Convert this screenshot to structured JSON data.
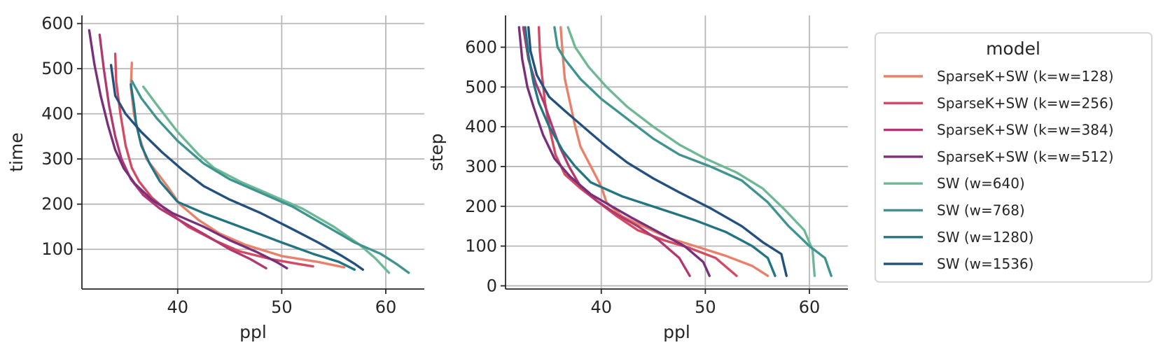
{
  "chart_data": [
    {
      "type": "line",
      "xlabel": "ppl",
      "ylabel": "time",
      "xlim": [
        30.8,
        63.7
      ],
      "ylim": [
        12,
        618
      ],
      "xticks": [
        40,
        50,
        60
      ],
      "yticks": [
        100,
        200,
        300,
        400,
        500,
        600
      ],
      "grid": true,
      "series": [
        {
          "name": "SparseK+SW (k=w=128)",
          "points": [
            [
              35.6,
              513
            ],
            [
              35.5,
              460
            ],
            [
              35.8,
              400
            ],
            [
              36.3,
              350
            ],
            [
              37.0,
              300
            ],
            [
              38.0,
              270
            ],
            [
              39.0,
              240
            ],
            [
              40.2,
              200
            ],
            [
              42.0,
              165
            ],
            [
              44.0,
              135
            ],
            [
              46.5,
              110
            ],
            [
              50.0,
              85
            ],
            [
              53.5,
              72
            ],
            [
              56.0,
              60
            ]
          ]
        },
        {
          "name": "SparseK+SW (k=w=256)",
          "points": [
            [
              34.0,
              533
            ],
            [
              34.1,
              470
            ],
            [
              34.5,
              400
            ],
            [
              35.0,
              330
            ],
            [
              35.6,
              280
            ],
            [
              36.3,
              250
            ],
            [
              37.5,
              215
            ],
            [
              39.0,
              185
            ],
            [
              41.0,
              150
            ],
            [
              43.5,
              120
            ],
            [
              46.0,
              95
            ],
            [
              49.0,
              78
            ],
            [
              51.5,
              68
            ],
            [
              53.0,
              62
            ]
          ]
        },
        {
          "name": "SparseK+SW (k=w=384)",
          "points": [
            [
              32.5,
              575
            ],
            [
              32.9,
              500
            ],
            [
              33.4,
              420
            ],
            [
              34.0,
              350
            ],
            [
              34.6,
              300
            ],
            [
              35.5,
              255
            ],
            [
              36.7,
              220
            ],
            [
              38.3,
              190
            ],
            [
              40.5,
              160
            ],
            [
              42.8,
              130
            ],
            [
              45.0,
              100
            ],
            [
              47.0,
              78
            ],
            [
              48.5,
              58
            ]
          ]
        },
        {
          "name": "SparseK+SW (k=w=512)",
          "points": [
            [
              31.5,
              585
            ],
            [
              32.0,
              510
            ],
            [
              32.6,
              440
            ],
            [
              33.3,
              375
            ],
            [
              34.0,
              320
            ],
            [
              34.8,
              280
            ],
            [
              35.9,
              245
            ],
            [
              37.5,
              210
            ],
            [
              39.5,
              180
            ],
            [
              42.5,
              150
            ],
            [
              45.0,
              120
            ],
            [
              47.5,
              95
            ],
            [
              49.5,
              72
            ],
            [
              50.5,
              58
            ]
          ]
        },
        {
          "name": "SW (w=640)",
          "points": [
            [
              36.7,
              460
            ],
            [
              38.0,
              420
            ],
            [
              40.0,
              360
            ],
            [
              42.0,
              310
            ],
            [
              43.5,
              280
            ],
            [
              46.0,
              250
            ],
            [
              49.0,
              220
            ],
            [
              52.0,
              190
            ],
            [
              55.0,
              150
            ],
            [
              57.5,
              110
            ],
            [
              59.0,
              80
            ],
            [
              60.3,
              48
            ]
          ]
        },
        {
          "name": "SW (w=768)",
          "points": [
            [
              35.6,
              473
            ],
            [
              36.5,
              435
            ],
            [
              38.0,
              390
            ],
            [
              40.0,
              340
            ],
            [
              42.5,
              290
            ],
            [
              45.0,
              255
            ],
            [
              48.0,
              225
            ],
            [
              51.0,
              195
            ],
            [
              54.0,
              155
            ],
            [
              57.0,
              115
            ],
            [
              59.5,
              90
            ],
            [
              61.0,
              68
            ],
            [
              62.2,
              48
            ]
          ]
        },
        {
          "name": "SW (w=1280)",
          "points": [
            [
              35.5,
              465
            ],
            [
              35.8,
              420
            ],
            [
              36.0,
              380
            ],
            [
              36.5,
              330
            ],
            [
              37.3,
              290
            ],
            [
              38.3,
              250
            ],
            [
              40.0,
              205
            ],
            [
              42.5,
              180
            ],
            [
              46.0,
              150
            ],
            [
              50.0,
              115
            ],
            [
              53.0,
              90
            ],
            [
              55.5,
              72
            ],
            [
              57.0,
              55
            ]
          ]
        },
        {
          "name": "SW (w=1536)",
          "points": [
            [
              33.6,
              508
            ],
            [
              34.0,
              440
            ],
            [
              35.0,
              400
            ],
            [
              36.5,
              360
            ],
            [
              38.5,
              315
            ],
            [
              40.5,
              275
            ],
            [
              42.5,
              240
            ],
            [
              45.0,
              210
            ],
            [
              48.0,
              180
            ],
            [
              51.0,
              145
            ],
            [
              53.5,
              115
            ],
            [
              55.8,
              85
            ],
            [
              57.0,
              68
            ],
            [
              57.8,
              55
            ]
          ]
        }
      ]
    },
    {
      "type": "line",
      "xlabel": "ppl",
      "ylabel": "step",
      "xlim": [
        30.8,
        63.7
      ],
      "ylim": [
        -8,
        680
      ],
      "xticks": [
        40,
        50,
        60
      ],
      "yticks": [
        0,
        100,
        200,
        300,
        400,
        500,
        600
      ],
      "grid": true,
      "series": [
        {
          "name": "SparseK+SW (k=w=128)",
          "points": [
            [
              36.1,
              650
            ],
            [
              36.3,
              580
            ],
            [
              36.5,
              520
            ],
            [
              37.0,
              460
            ],
            [
              37.5,
              400
            ],
            [
              38.0,
              350
            ],
            [
              39.0,
              300
            ],
            [
              40.0,
              250
            ],
            [
              40.5,
              210
            ],
            [
              42.0,
              175
            ],
            [
              44.0,
              150
            ],
            [
              46.5,
              120
            ],
            [
              49.0,
              100
            ],
            [
              52.0,
              75
            ],
            [
              54.5,
              50
            ],
            [
              56.0,
              25
            ]
          ]
        },
        {
          "name": "SparseK+SW (k=w=256)",
          "points": [
            [
              34.0,
              650
            ],
            [
              34.1,
              590
            ],
            [
              34.3,
              530
            ],
            [
              34.6,
              460
            ],
            [
              35.0,
              400
            ],
            [
              35.6,
              330
            ],
            [
              36.5,
              280
            ],
            [
              38.0,
              245
            ],
            [
              39.5,
              215
            ],
            [
              41.5,
              175
            ],
            [
              43.5,
              140
            ],
            [
              46.0,
              115
            ],
            [
              48.5,
              95
            ],
            [
              51.0,
              70
            ],
            [
              53.0,
              25
            ]
          ]
        },
        {
          "name": "SparseK+SW (k=w=384)",
          "points": [
            [
              32.5,
              650
            ],
            [
              33.0,
              570
            ],
            [
              33.7,
              510
            ],
            [
              34.5,
              460
            ],
            [
              35.3,
              400
            ],
            [
              36.0,
              350
            ],
            [
              36.9,
              300
            ],
            [
              38.0,
              250
            ],
            [
              39.5,
              215
            ],
            [
              41.5,
              180
            ],
            [
              43.5,
              150
            ],
            [
              45.5,
              115
            ],
            [
              47.5,
              70
            ],
            [
              48.5,
              25
            ]
          ]
        },
        {
          "name": "SparseK+SW (k=w=512)",
          "points": [
            [
              32.1,
              650
            ],
            [
              32.4,
              570
            ],
            [
              32.9,
              500
            ],
            [
              33.5,
              450
            ],
            [
              34.4,
              380
            ],
            [
              35.5,
              320
            ],
            [
              37.0,
              275
            ],
            [
              39.0,
              230
            ],
            [
              41.0,
              200
            ],
            [
              43.0,
              170
            ],
            [
              45.5,
              135
            ],
            [
              48.0,
              100
            ],
            [
              49.8,
              60
            ],
            [
              50.4,
              25
            ]
          ]
        },
        {
          "name": "SW (w=640)",
          "points": [
            [
              36.8,
              650
            ],
            [
              37.5,
              600
            ],
            [
              38.8,
              550
            ],
            [
              40.5,
              500
            ],
            [
              42.5,
              450
            ],
            [
              45.0,
              400
            ],
            [
              47.5,
              355
            ],
            [
              50.0,
              320
            ],
            [
              53.0,
              285
            ],
            [
              55.5,
              245
            ],
            [
              57.5,
              195
            ],
            [
              59.5,
              140
            ],
            [
              60.3,
              90
            ],
            [
              60.5,
              25
            ]
          ]
        },
        {
          "name": "SW (w=768)",
          "points": [
            [
              35.5,
              650
            ],
            [
              35.8,
              600
            ],
            [
              36.5,
              570
            ],
            [
              38.0,
              520
            ],
            [
              40.0,
              470
            ],
            [
              42.5,
              420
            ],
            [
              45.0,
              370
            ],
            [
              47.5,
              330
            ],
            [
              50.5,
              300
            ],
            [
              53.5,
              265
            ],
            [
              56.0,
              210
            ],
            [
              58.0,
              150
            ],
            [
              60.0,
              100
            ],
            [
              61.5,
              70
            ],
            [
              62.1,
              25
            ]
          ]
        },
        {
          "name": "SW (w=1280)",
          "points": [
            [
              32.7,
              650
            ],
            [
              33.0,
              580
            ],
            [
              33.5,
              510
            ],
            [
              34.0,
              460
            ],
            [
              35.0,
              400
            ],
            [
              36.3,
              340
            ],
            [
              37.5,
              300
            ],
            [
              39.0,
              260
            ],
            [
              42.0,
              225
            ],
            [
              45.5,
              195
            ],
            [
              49.0,
              165
            ],
            [
              52.0,
              135
            ],
            [
              54.5,
              100
            ],
            [
              56.0,
              70
            ],
            [
              56.7,
              25
            ]
          ]
        },
        {
          "name": "SW (w=1536)",
          "points": [
            [
              33.0,
              650
            ],
            [
              33.2,
              590
            ],
            [
              33.8,
              530
            ],
            [
              35.0,
              475
            ],
            [
              36.5,
              440
            ],
            [
              38.5,
              395
            ],
            [
              40.5,
              350
            ],
            [
              42.5,
              310
            ],
            [
              45.0,
              270
            ],
            [
              47.5,
              235
            ],
            [
              50.5,
              195
            ],
            [
              53.5,
              150
            ],
            [
              55.5,
              110
            ],
            [
              57.3,
              80
            ],
            [
              57.8,
              25
            ]
          ]
        }
      ]
    }
  ],
  "legend": {
    "title": "model",
    "placement": "right"
  },
  "colors": {
    "SparseK+SW (k=w=128)": "#e8806a",
    "SparseK+SW (k=w=256)": "#d44a62",
    "SparseK+SW (k=w=384)": "#b03a70",
    "SparseK+SW (k=w=512)": "#7a2f7a",
    "SW (w=640)": "#6fb896",
    "SW (w=768)": "#3f9490",
    "SW (w=1280)": "#237584",
    "SW (w=1536)": "#24507e"
  }
}
